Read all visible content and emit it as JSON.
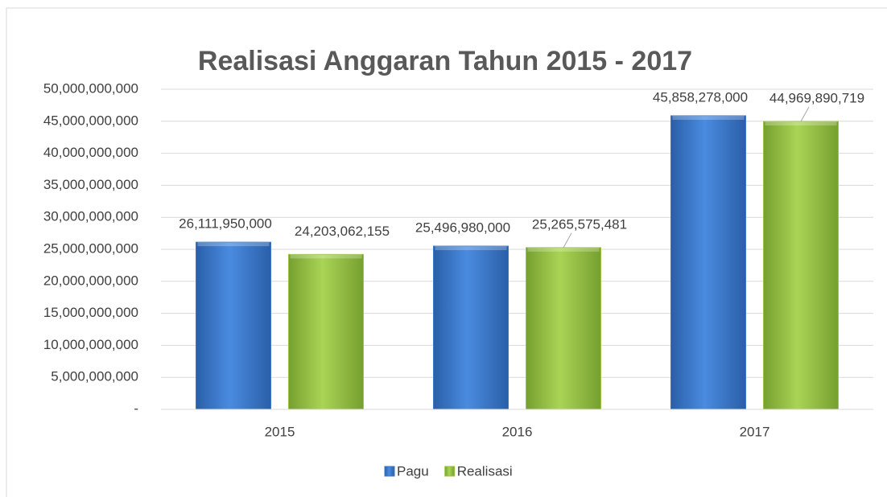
{
  "chart_data": {
    "type": "bar",
    "title": "Realisasi Anggaran Tahun 2015 - 2017",
    "categories": [
      "2015",
      "2016",
      "2017"
    ],
    "series": [
      {
        "name": "Pagu",
        "color": "#3a78c9",
        "values": [
          26111950000,
          25496980000,
          45858278000
        ],
        "value_labels": [
          "26,111,950,000",
          "25,496,980,000",
          "45,858,278,000"
        ]
      },
      {
        "name": "Realisasi",
        "color": "#9ac445",
        "values": [
          24203062155,
          25265575481,
          44969890719
        ],
        "value_labels": [
          "24,203,062,155",
          "25,265,575,481",
          "44,969,890,719"
        ]
      }
    ],
    "ylim": [
      0,
      50000000000
    ],
    "yticks": [
      {
        "value": 0,
        "label": "-"
      },
      {
        "value": 5000000000,
        "label": "5,000,000,000"
      },
      {
        "value": 10000000000,
        "label": "10,000,000,000"
      },
      {
        "value": 15000000000,
        "label": "15,000,000,000"
      },
      {
        "value": 20000000000,
        "label": "20,000,000,000"
      },
      {
        "value": 25000000000,
        "label": "25,000,000,000"
      },
      {
        "value": 30000000000,
        "label": "30,000,000,000"
      },
      {
        "value": 35000000000,
        "label": "35,000,000,000"
      },
      {
        "value": 40000000000,
        "label": "40,000,000,000"
      },
      {
        "value": 45000000000,
        "label": "45,000,000,000"
      },
      {
        "value": 50000000000,
        "label": "50,000,000,000"
      }
    ],
    "grid": true,
    "legend": "bottom"
  }
}
